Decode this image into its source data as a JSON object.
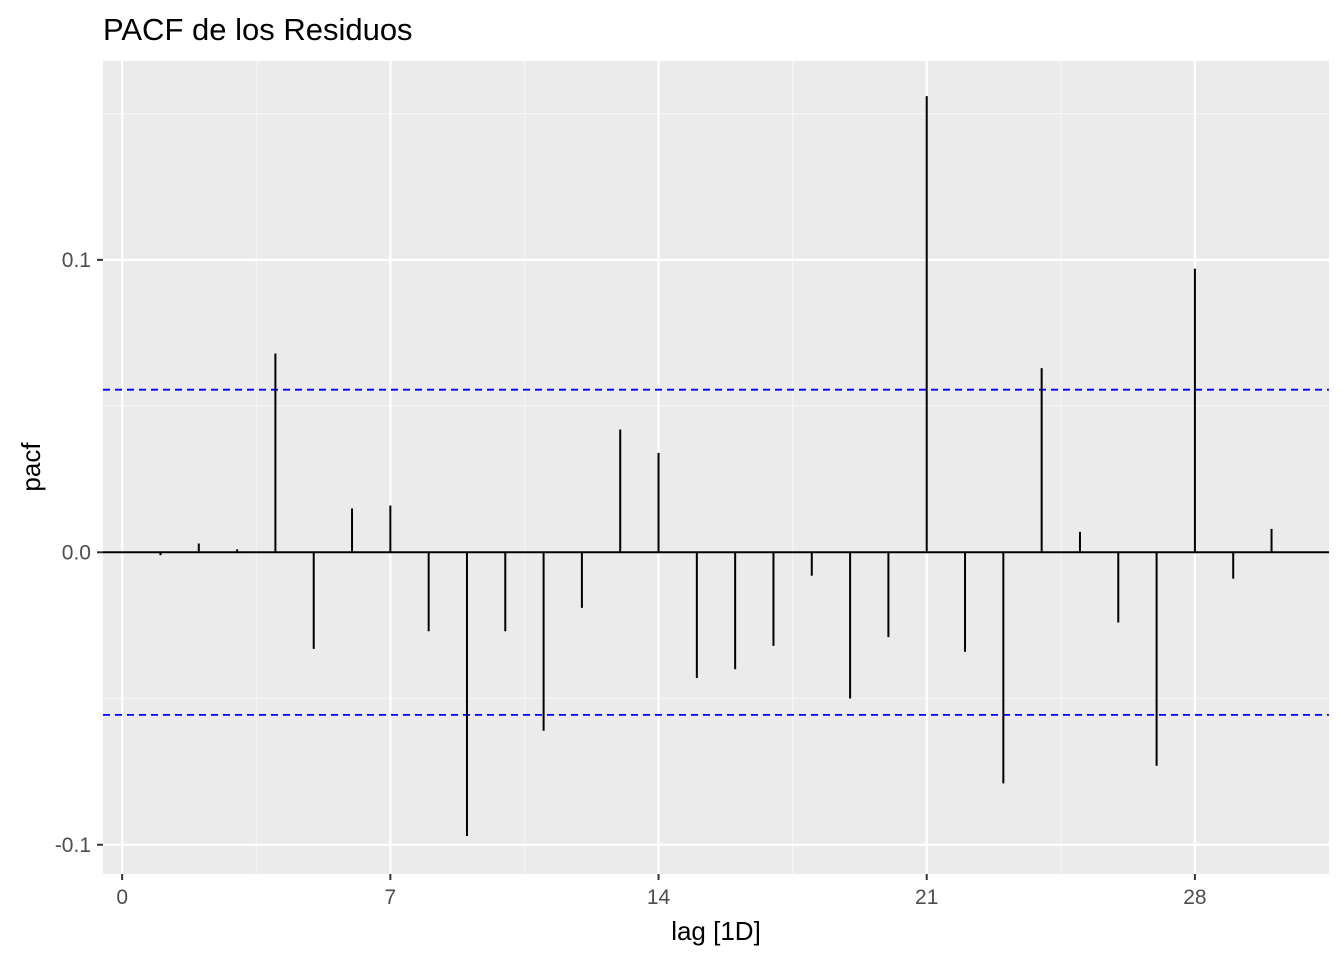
{
  "chart_data": {
    "type": "bar",
    "subtype": "pacf-spikes",
    "title": "PACF de los Residuos",
    "xlabel": "lag [1D]",
    "ylabel": "pacf",
    "x": [
      1,
      2,
      3,
      4,
      5,
      6,
      7,
      8,
      9,
      10,
      11,
      12,
      13,
      14,
      15,
      16,
      17,
      18,
      19,
      20,
      21,
      22,
      23,
      24,
      25,
      26,
      27,
      28,
      29,
      30
    ],
    "values": [
      -0.001,
      0.003,
      0.001,
      0.068,
      -0.033,
      0.015,
      0.016,
      -0.027,
      -0.097,
      -0.027,
      -0.061,
      -0.019,
      0.042,
      0.034,
      -0.043,
      -0.04,
      -0.032,
      -0.008,
      -0.05,
      -0.029,
      0.156,
      -0.034,
      -0.079,
      0.063,
      0.007,
      -0.024,
      -0.073,
      0.097,
      -0.009,
      0.008
    ],
    "confidence_bound": 0.0556,
    "xlim": [
      -0.5,
      31.5
    ],
    "ylim": [
      -0.11,
      0.168
    ],
    "x_ticks": [
      0,
      7,
      14,
      21,
      28
    ],
    "x_tick_labels": [
      "0",
      "7",
      "14",
      "21",
      "28"
    ],
    "y_ticks": [
      -0.1,
      0.0,
      0.1
    ],
    "y_tick_labels": [
      "-0.1",
      "0.0",
      "0.1"
    ],
    "grid": true,
    "legend": "none",
    "colors": {
      "panel_background": "#ebebeb",
      "grid_major": "#ffffff",
      "grid_minor": "#f5f5f5",
      "spike": "#000000",
      "confidence_line": "#0000ff",
      "tick_label": "#4d4d4d"
    }
  }
}
